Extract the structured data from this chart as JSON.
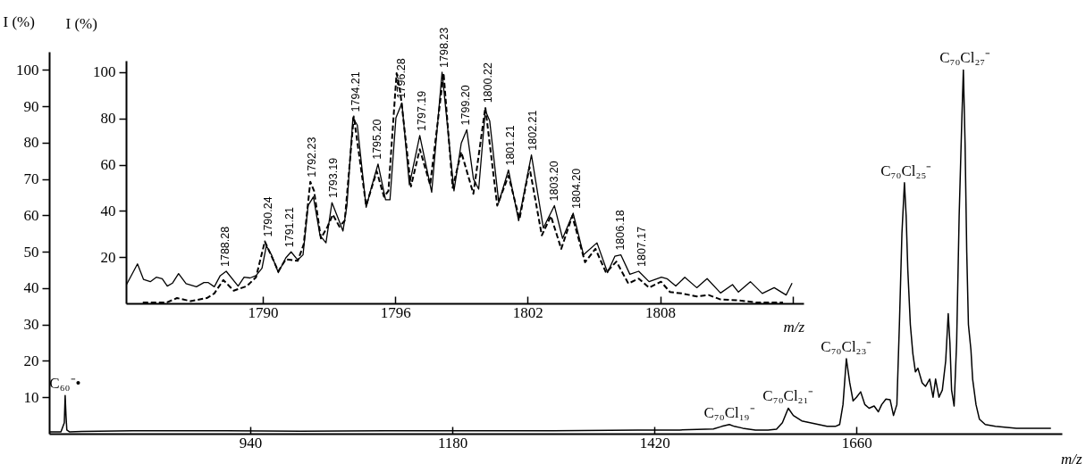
{
  "chart_data": [
    {
      "type": "line",
      "xlabel": "m/z",
      "ylabel": "I (%)",
      "xlim": [
        701,
        1904
      ],
      "ylim": [
        0,
        105
      ],
      "xticks": [
        940,
        1180,
        1420,
        1660
      ],
      "yticks": [
        10,
        20,
        30,
        40,
        50,
        60,
        70,
        80,
        90,
        100
      ],
      "series": [
        {
          "color": "#000000",
          "x": [
            701,
            715,
            719,
            720,
            721,
            722,
            725,
            740,
            800,
            900,
            1000,
            1100,
            1200,
            1300,
            1400,
            1450,
            1490,
            1500,
            1509,
            1515,
            1525,
            1540,
            1555,
            1565,
            1572,
            1579,
            1585,
            1595,
            1605,
            1615,
            1625,
            1635,
            1640,
            1644,
            1648,
            1652,
            1656,
            1660,
            1665,
            1670,
            1675,
            1681,
            1686,
            1690,
            1695,
            1700,
            1704,
            1708,
            1711,
            1714,
            1717,
            1719,
            1721,
            1724,
            1727,
            1730,
            1733,
            1738,
            1742,
            1747,
            1751,
            1754,
            1758,
            1762,
            1766,
            1769,
            1771,
            1773,
            1776,
            1779,
            1782,
            1785,
            1787,
            1789,
            1791,
            1793,
            1796,
            1798,
            1802,
            1806,
            1813,
            1825,
            1850,
            1870,
            1891
          ],
          "values": [
            0.5,
            0.5,
            3,
            10.5,
            5,
            1,
            0.5,
            0.6,
            0.8,
            0.8,
            0.7,
            0.8,
            0.8,
            0.8,
            1,
            1,
            1.3,
            2,
            2.5,
            2,
            1.5,
            1,
            1,
            1.2,
            3,
            7,
            5,
            3.5,
            3,
            2.5,
            2,
            2,
            2.5,
            8,
            20.6,
            14,
            9,
            10,
            11.5,
            8,
            7,
            7.6,
            6,
            8,
            9.5,
            9.3,
            5,
            8,
            30,
            55,
            69,
            60,
            45,
            30,
            22,
            17,
            18,
            14,
            13,
            15,
            10,
            15,
            10,
            12,
            20,
            33,
            25,
            12,
            7.6,
            25,
            60,
            85,
            100,
            80,
            50,
            30,
            23,
            15,
            8,
            4,
            2.5,
            2,
            1.5,
            1.5,
            1.5
          ]
        }
      ],
      "annotations": [
        {
          "text": "C₆₀⁻•",
          "x": 720,
          "y": 10.5
        },
        {
          "text": "C₇₀Cl₁₉⁻",
          "x": 1509,
          "y": 2.5
        },
        {
          "text": "C₇₀Cl₂₁⁻",
          "x": 1579,
          "y": 7
        },
        {
          "text": "C₇₀Cl₂₃⁻",
          "x": 1648,
          "y": 20.6
        },
        {
          "text": "C₇₀Cl₂₅⁻",
          "x": 1719,
          "y": 69
        },
        {
          "text": "C₇₀Cl₂₇⁻",
          "x": 1789,
          "y": 100
        }
      ]
    },
    {
      "type": "line",
      "xlabel": "m/z",
      "ylabel": "I (%)",
      "xlim": [
        1783.8,
        1814.5
      ],
      "ylim": [
        0,
        105
      ],
      "xticks": [
        1790,
        1796,
        1802,
        1808,
        {
          "value": 1814,
          "label": null
        }
      ],
      "yticks": [
        20,
        40,
        60,
        80,
        100
      ],
      "series": [
        {
          "color": "#000000",
          "line_style": "solid",
          "x": [
            1783.82,
            1784.32,
            1784.59,
            1784.9,
            1785.17,
            1785.44,
            1785.67,
            1785.91,
            1786.18,
            1786.52,
            1786.99,
            1787.33,
            1787.53,
            1787.8,
            1788.07,
            1788.34,
            1788.88,
            1789.15,
            1789.42,
            1789.69,
            1789.96,
            1790.16,
            1790.39,
            1790.7,
            1791.04,
            1791.28,
            1791.58,
            1791.82,
            1792.05,
            1792.29,
            1792.59,
            1792.86,
            1793.13,
            1793.4,
            1793.63,
            1793.81,
            1794.08,
            1794.28,
            1794.68,
            1794.95,
            1795.22,
            1795.56,
            1795.76,
            1796.03,
            1796.3,
            1796.64,
            1797.11,
            1797.65,
            1798.12,
            1798.66,
            1798.99,
            1799.24,
            1799.54,
            1799.78,
            1800.08,
            1800.28,
            1800.69,
            1801.13,
            1801.59,
            1802.17,
            1802.71,
            1803.21,
            1803.58,
            1804.06,
            1804.53,
            1805.14,
            1805.62,
            1805.95,
            1806.22,
            1806.63,
            1807.03,
            1807.5,
            1808.06,
            1808.31,
            1808.71,
            1809.12,
            1809.66,
            1810.13,
            1810.74,
            1811.28,
            1811.55,
            1812.09,
            1812.63,
            1813.17,
            1813.71,
            1813.98
          ],
          "values": [
            8.1,
            17.1,
            10.4,
            9.4,
            11.3,
            10.7,
            7.5,
            8.8,
            12.9,
            8.5,
            7.2,
            9,
            9,
            7.2,
            12,
            13.9,
            7.5,
            11.3,
            11,
            12,
            15.2,
            24.9,
            21,
            13.3,
            19.7,
            22.3,
            18.8,
            21,
            42.3,
            46.1,
            29.4,
            26.2,
            43.6,
            37.1,
            31.3,
            42.3,
            80.3,
            77.1,
            41.6,
            51.3,
            60.3,
            44.8,
            44.8,
            80.3,
            86.7,
            51.3,
            72.6,
            48.1,
            100,
            48.7,
            69.3,
            75.1,
            53.9,
            49.4,
            83.5,
            78.9,
            43.6,
            57.7,
            35.8,
            64.2,
            32.6,
            42.3,
            28.1,
            39,
            21,
            26.2,
            13.3,
            20.4,
            21,
            12.6,
            13.9,
            9.4,
            11.3,
            10.7,
            7.5,
            11.3,
            6.8,
            10.7,
            4.5,
            8.1,
            4.9,
            9.4,
            4.3,
            6.8,
            3.6,
            8.8
          ]
        },
        {
          "color": "#000000",
          "line_style": "dashed",
          "x": [
            1784.56,
            1785.64,
            1786.11,
            1786.72,
            1787.46,
            1787.8,
            1788.21,
            1788.68,
            1789.28,
            1789.69,
            1790.09,
            1790.7,
            1791.04,
            1791.58,
            1791.85,
            1792.15,
            1792.32,
            1792.63,
            1792.93,
            1793.17,
            1793.47,
            1793.71,
            1794.12,
            1794.68,
            1795.16,
            1795.49,
            1795.69,
            1796.06,
            1796.23,
            1796.71,
            1797.11,
            1797.58,
            1798.19,
            1798.6,
            1798.99,
            1799.54,
            1800.08,
            1800.62,
            1801.13,
            1801.63,
            1802.08,
            1802.64,
            1803.05,
            1803.52,
            1804.02,
            1804.6,
            1805.07,
            1805.55,
            1806.02,
            1806.56,
            1807.03,
            1807.5,
            1808.04,
            1808.45,
            1808.99,
            1809.66,
            1810.2,
            1810.74,
            1811.55,
            1812.36,
            1813.57
          ],
          "values": [
            0.4,
            0.4,
            2.3,
            1,
            2.3,
            4.3,
            10.1,
            5.5,
            7.5,
            11.3,
            26.8,
            13.9,
            19.1,
            18.4,
            25.5,
            52.6,
            48.7,
            28.1,
            33.2,
            38.4,
            33.2,
            35.8,
            80.9,
            42.3,
            57.1,
            46.1,
            48.7,
            99.6,
            91.2,
            50.6,
            66.7,
            51.3,
            99.6,
            50,
            65.5,
            47.4,
            84.8,
            42.3,
            55.2,
            36.5,
            59,
            29.4,
            37.8,
            23.6,
            37.8,
            17.8,
            23.6,
            13.3,
            18.1,
            8.6,
            10.7,
            6.8,
            9.4,
            4.9,
            4.3,
            3,
            3.6,
            1.7,
            1.3,
            0.4,
            0.4
          ]
        }
      ],
      "annotations": [
        {
          "text": "1788.28",
          "x": 1788.28,
          "y": 13.9
        },
        {
          "text": "1790.24",
          "x": 1790.24,
          "y": 26.8
        },
        {
          "text": "1791.21",
          "x": 1791.21,
          "y": 22.3
        },
        {
          "text": "1792.23",
          "x": 1792.23,
          "y": 52.6
        },
        {
          "text": "1793.19",
          "x": 1793.19,
          "y": 43.6
        },
        {
          "text": "1794.21",
          "x": 1794.21,
          "y": 80.9
        },
        {
          "text": "1795.20",
          "x": 1795.2,
          "y": 60.3
        },
        {
          "text": "1796.28",
          "x": 1796.28,
          "y": 86.7
        },
        {
          "text": "1797.19",
          "x": 1797.19,
          "y": 72.6
        },
        {
          "text": "1798.23",
          "x": 1798.23,
          "y": 100
        },
        {
          "text": "1799.20",
          "x": 1799.2,
          "y": 75.1
        },
        {
          "text": "1800.22",
          "x": 1800.22,
          "y": 84.8
        },
        {
          "text": "1801.21",
          "x": 1801.21,
          "y": 57.7
        },
        {
          "text": "1802.21",
          "x": 1802.21,
          "y": 64.2
        },
        {
          "text": "1803.20",
          "x": 1803.2,
          "y": 42.3
        },
        {
          "text": "1804.20",
          "x": 1804.2,
          "y": 39
        },
        {
          "text": "1806.18",
          "x": 1806.18,
          "y": 21
        },
        {
          "text": "1807.17",
          "x": 1807.17,
          "y": 13.9
        }
      ]
    }
  ]
}
